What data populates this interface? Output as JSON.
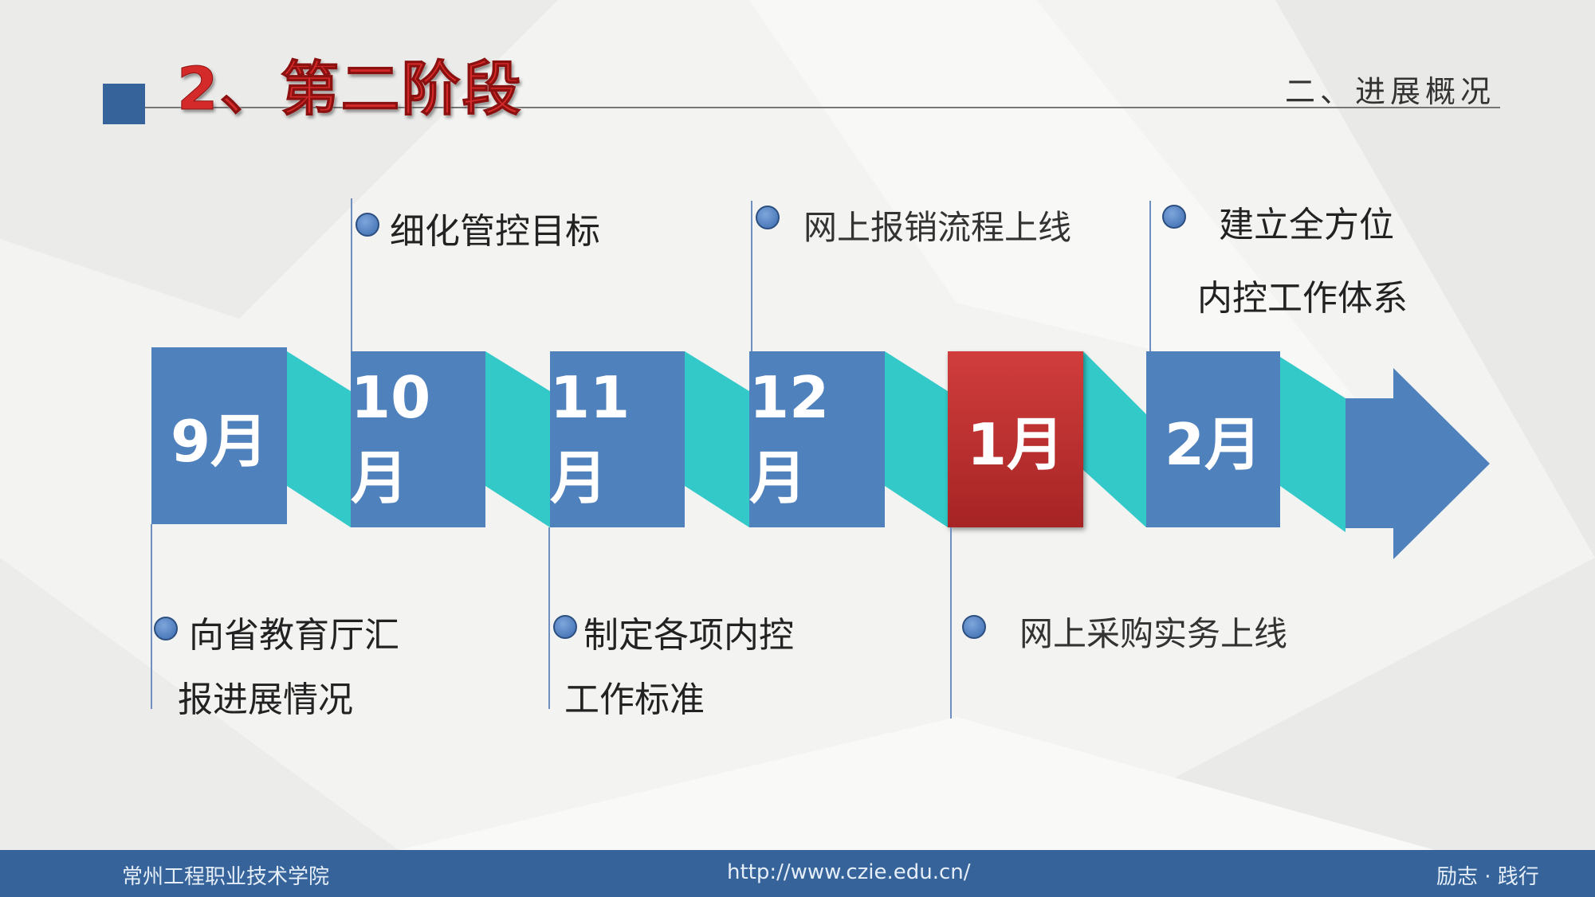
{
  "header": {
    "title": "2、第二阶段",
    "section": "二、进展概况"
  },
  "timeline": {
    "months": [
      {
        "label": "9月",
        "highlight": false
      },
      {
        "label": "10月",
        "highlight": false
      },
      {
        "label": "11月",
        "highlight": false
      },
      {
        "label": "12月",
        "highlight": false
      },
      {
        "label": "1月",
        "highlight": true
      },
      {
        "label": "2月",
        "highlight": false
      }
    ],
    "upper_events": [
      {
        "month": "10月",
        "lines": [
          "细化管控目标"
        ]
      },
      {
        "month": "12月",
        "lines": [
          "网上报销流程上线"
        ]
      },
      {
        "month": "2月",
        "lines": [
          "建立全方位",
          "内控工作体系"
        ]
      }
    ],
    "lower_events": [
      {
        "month": "9月",
        "lines": [
          "向省教育厅汇",
          "报进展情况"
        ]
      },
      {
        "month": "11月",
        "lines": [
          "制定各项内控",
          "工作标准"
        ]
      },
      {
        "month": "1月",
        "lines": [
          "网上采购实务上线"
        ]
      }
    ],
    "colors": {
      "box": "#4f81bd",
      "highlight": "#c0392b",
      "connector": "#33c9c9"
    }
  },
  "footer": {
    "school": "常州工程职业技术学院",
    "url": "http://www.czie.edu.cn/",
    "motto": "励志 · 践行"
  }
}
